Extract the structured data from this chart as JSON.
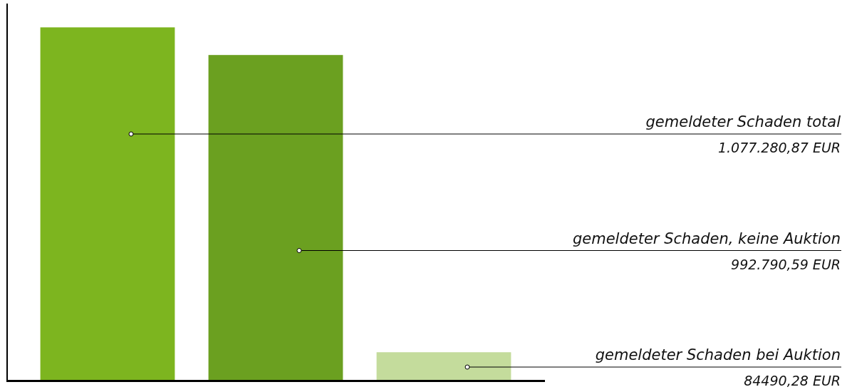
{
  "chart_data": {
    "type": "bar",
    "categories": [
      null,
      null,
      null
    ],
    "values": [
      1077280.87,
      992790.59,
      84490.28
    ],
    "colors": [
      "#7db51f",
      "#6ba020",
      "#c4dc9c"
    ],
    "value_labels": [
      "1.077.280,87 EUR",
      "992.790,59 EUR",
      "84490,28 EUR"
    ],
    "annotations": [
      "gemeldeter Schaden total",
      "gemeldeter Schaden, keine Auktion",
      "gemeldeter Schaden bei Auktion"
    ],
    "ylim": [
      0,
      1150000
    ]
  }
}
